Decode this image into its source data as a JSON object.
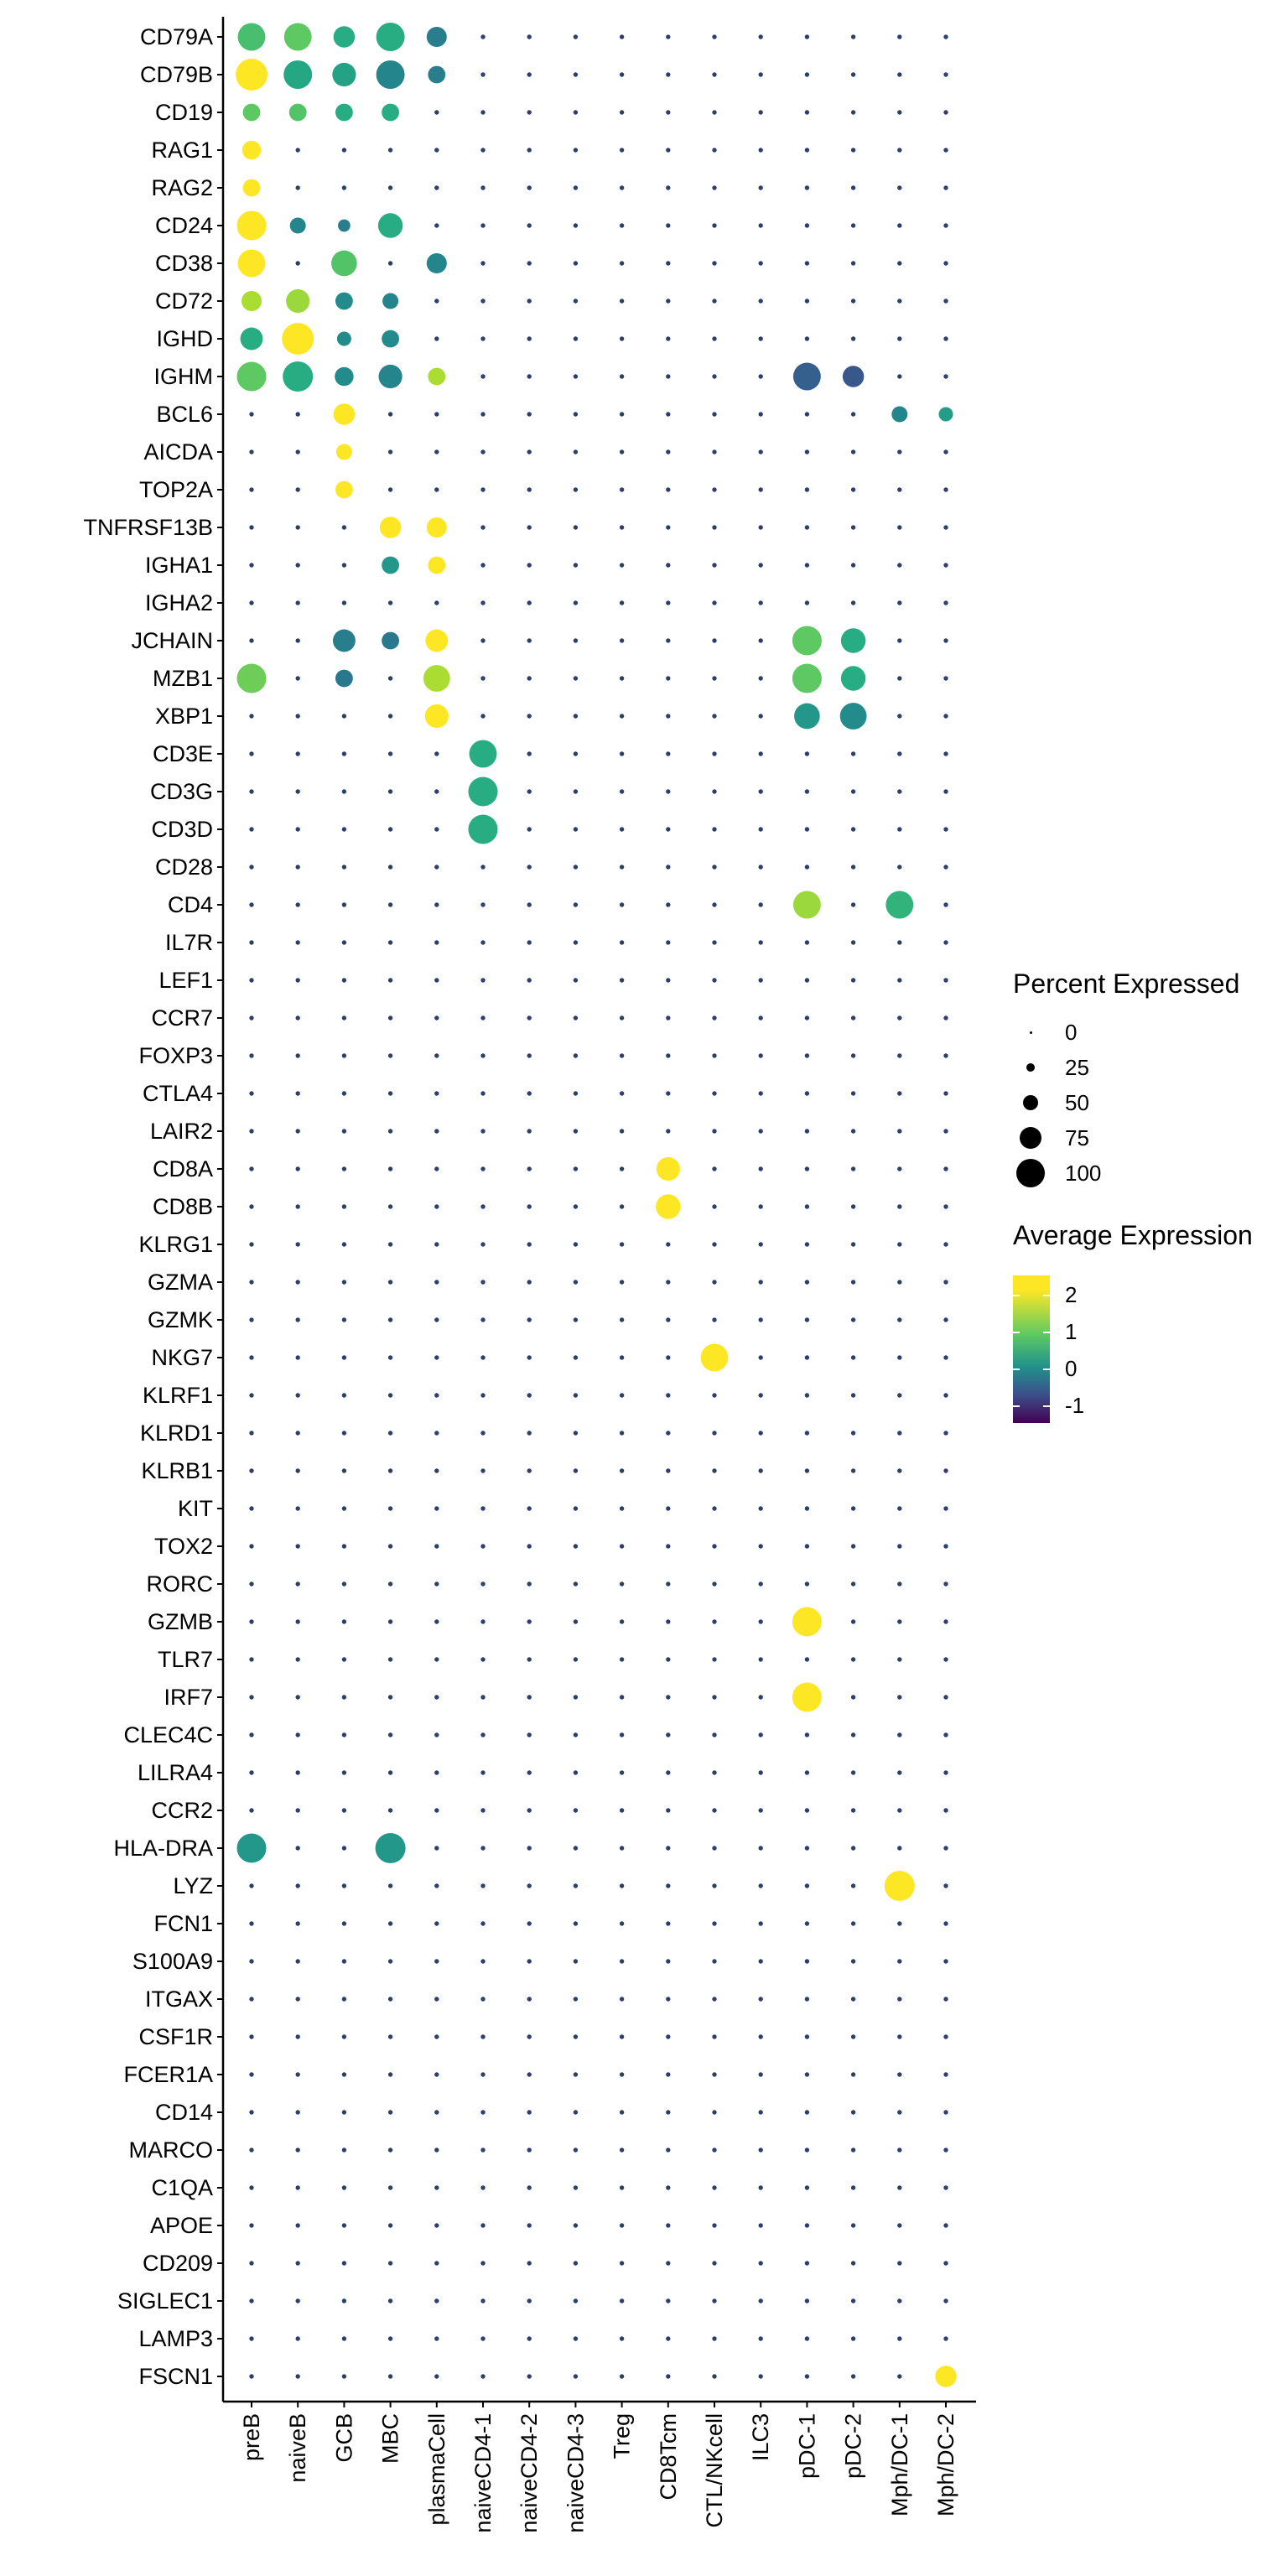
{
  "chart_data": {
    "type": "dotplot",
    "genes": [
      "CD79A",
      "CD79B",
      "CD19",
      "RAG1",
      "RAG2",
      "CD24",
      "CD38",
      "CD72",
      "IGHD",
      "IGHM",
      "BCL6",
      "AICDA",
      "TOP2A",
      "TNFRSF13B",
      "IGHA1",
      "IGHA2",
      "JCHAIN",
      "MZB1",
      "XBP1",
      "CD3E",
      "CD3G",
      "CD3D",
      "CD28",
      "CD4",
      "IL7R",
      "LEF1",
      "CCR7",
      "FOXP3",
      "CTLA4",
      "LAIR2",
      "CD8A",
      "CD8B",
      "KLRG1",
      "GZMA",
      "GZMK",
      "NKG7",
      "KLRF1",
      "KLRD1",
      "KLRB1",
      "KIT",
      "TOX2",
      "RORC",
      "GZMB",
      "TLR7",
      "IRF7",
      "CLEC4C",
      "LILRA4",
      "CCR2",
      "HLA-DRA",
      "LYZ",
      "FCN1",
      "S100A9",
      "ITGAX",
      "CSF1R",
      "FCER1A",
      "CD14",
      "MARCO",
      "C1QA",
      "APOE",
      "CD209",
      "SIGLEC1",
      "LAMP3",
      "FSCN1"
    ],
    "cell_types": [
      "preB",
      "naiveB",
      "GCB",
      "MBC",
      "plasmaCell",
      "naiveCD4-1",
      "naiveCD4-2",
      "naiveCD4-3",
      "Treg",
      "CD8Tcm",
      "CTL/NKcell",
      "ILC3",
      "pDC-1",
      "pDC-2",
      "Mph/DC-1",
      "Mph/DC-2"
    ],
    "highlights": [
      {
        "gene": "CD79A",
        "cell": "preB",
        "pct": 75,
        "avg": 1.3
      },
      {
        "gene": "CD79A",
        "cell": "naiveB",
        "pct": 75,
        "avg": 1.5
      },
      {
        "gene": "CD79A",
        "cell": "GCB",
        "pct": 45,
        "avg": 1.0
      },
      {
        "gene": "CD79A",
        "cell": "MBC",
        "pct": 80,
        "avg": 1.0
      },
      {
        "gene": "CD79A",
        "cell": "plasmaCell",
        "pct": 40,
        "avg": 0.2
      },
      {
        "gene": "CD79B",
        "cell": "preB",
        "pct": 100,
        "avg": 2.3
      },
      {
        "gene": "CD79B",
        "cell": "naiveB",
        "pct": 80,
        "avg": 0.9
      },
      {
        "gene": "CD79B",
        "cell": "GCB",
        "pct": 55,
        "avg": 0.8
      },
      {
        "gene": "CD79B",
        "cell": "MBC",
        "pct": 80,
        "avg": 0.3
      },
      {
        "gene": "CD79B",
        "cell": "plasmaCell",
        "pct": 30,
        "avg": 0.2
      },
      {
        "gene": "CD19",
        "cell": "preB",
        "pct": 30,
        "avg": 1.5
      },
      {
        "gene": "CD19",
        "cell": "naiveB",
        "pct": 30,
        "avg": 1.4
      },
      {
        "gene": "CD19",
        "cell": "GCB",
        "pct": 30,
        "avg": 1.0
      },
      {
        "gene": "CD19",
        "cell": "MBC",
        "pct": 30,
        "avg": 1.0
      },
      {
        "gene": "RAG1",
        "cell": "preB",
        "pct": 35,
        "avg": 2.3
      },
      {
        "gene": "RAG2",
        "cell": "preB",
        "pct": 30,
        "avg": 2.3
      },
      {
        "gene": "CD24",
        "cell": "preB",
        "pct": 85,
        "avg": 2.3
      },
      {
        "gene": "CD24",
        "cell": "naiveB",
        "pct": 25,
        "avg": 0.3
      },
      {
        "gene": "CD24",
        "cell": "GCB",
        "pct": 15,
        "avg": 0.2
      },
      {
        "gene": "CD24",
        "cell": "MBC",
        "pct": 60,
        "avg": 1.0
      },
      {
        "gene": "CD38",
        "cell": "preB",
        "pct": 75,
        "avg": 2.3
      },
      {
        "gene": "CD38",
        "cell": "GCB",
        "pct": 65,
        "avg": 1.4
      },
      {
        "gene": "CD38",
        "cell": "plasmaCell",
        "pct": 40,
        "avg": 0.3
      },
      {
        "gene": "CD72",
        "cell": "preB",
        "pct": 40,
        "avg": 2.0
      },
      {
        "gene": "CD72",
        "cell": "naiveB",
        "pct": 55,
        "avg": 1.9
      },
      {
        "gene": "CD72",
        "cell": "GCB",
        "pct": 30,
        "avg": 0.4
      },
      {
        "gene": "CD72",
        "cell": "MBC",
        "pct": 25,
        "avg": 0.3
      },
      {
        "gene": "IGHD",
        "cell": "preB",
        "pct": 50,
        "avg": 1.0
      },
      {
        "gene": "IGHD",
        "cell": "naiveB",
        "pct": 100,
        "avg": 2.3
      },
      {
        "gene": "IGHD",
        "cell": "GCB",
        "pct": 20,
        "avg": 0.4
      },
      {
        "gene": "IGHD",
        "cell": "MBC",
        "pct": 30,
        "avg": 0.4
      },
      {
        "gene": "IGHM",
        "cell": "preB",
        "pct": 85,
        "avg": 1.5
      },
      {
        "gene": "IGHM",
        "cell": "naiveB",
        "pct": 90,
        "avg": 1.0
      },
      {
        "gene": "IGHM",
        "cell": "GCB",
        "pct": 35,
        "avg": 0.4
      },
      {
        "gene": "IGHM",
        "cell": "MBC",
        "pct": 55,
        "avg": 0.3
      },
      {
        "gene": "IGHM",
        "cell": "plasmaCell",
        "pct": 30,
        "avg": 2.0
      },
      {
        "gene": "IGHM",
        "cell": "pDC-1",
        "pct": 75,
        "avg": -0.3
      },
      {
        "gene": "IGHM",
        "cell": "pDC-2",
        "pct": 45,
        "avg": -0.4
      },
      {
        "gene": "BCL6",
        "cell": "GCB",
        "pct": 45,
        "avg": 2.3
      },
      {
        "gene": "BCL6",
        "cell": "Mph/DC-1",
        "pct": 25,
        "avg": 0.3
      },
      {
        "gene": "BCL6",
        "cell": "Mph/DC-2",
        "pct": 20,
        "avg": 0.7
      },
      {
        "gene": "AICDA",
        "cell": "GCB",
        "pct": 25,
        "avg": 2.3
      },
      {
        "gene": "TOP2A",
        "cell": "GCB",
        "pct": 30,
        "avg": 2.3
      },
      {
        "gene": "TNFRSF13B",
        "cell": "MBC",
        "pct": 45,
        "avg": 2.3
      },
      {
        "gene": "TNFRSF13B",
        "cell": "plasmaCell",
        "pct": 40,
        "avg": 2.3
      },
      {
        "gene": "IGHA1",
        "cell": "MBC",
        "pct": 30,
        "avg": 0.6
      },
      {
        "gene": "IGHA1",
        "cell": "plasmaCell",
        "pct": 30,
        "avg": 2.3
      },
      {
        "gene": "JCHAIN",
        "cell": "GCB",
        "pct": 50,
        "avg": 0.2
      },
      {
        "gene": "JCHAIN",
        "cell": "MBC",
        "pct": 30,
        "avg": 0.1
      },
      {
        "gene": "JCHAIN",
        "cell": "plasmaCell",
        "pct": 50,
        "avg": 2.3
      },
      {
        "gene": "JCHAIN",
        "cell": "pDC-1",
        "pct": 85,
        "avg": 1.5
      },
      {
        "gene": "JCHAIN",
        "cell": "pDC-2",
        "pct": 60,
        "avg": 1.0
      },
      {
        "gene": "MZB1",
        "cell": "preB",
        "pct": 85,
        "avg": 1.6
      },
      {
        "gene": "MZB1",
        "cell": "GCB",
        "pct": 30,
        "avg": 0.1
      },
      {
        "gene": "MZB1",
        "cell": "plasmaCell",
        "pct": 70,
        "avg": 2.0
      },
      {
        "gene": "MZB1",
        "cell": "pDC-1",
        "pct": 85,
        "avg": 1.5
      },
      {
        "gene": "MZB1",
        "cell": "pDC-2",
        "pct": 60,
        "avg": 1.0
      },
      {
        "gene": "XBP1",
        "cell": "plasmaCell",
        "pct": 55,
        "avg": 2.3
      },
      {
        "gene": "XBP1",
        "cell": "pDC-1",
        "pct": 65,
        "avg": 0.6
      },
      {
        "gene": "XBP1",
        "cell": "pDC-2",
        "pct": 70,
        "avg": 0.4
      },
      {
        "gene": "CD3E",
        "cell": "naiveCD4-1",
        "pct": 75,
        "avg": 1.0
      },
      {
        "gene": "CD3G",
        "cell": "naiveCD4-1",
        "pct": 85,
        "avg": 1.0
      },
      {
        "gene": "CD3D",
        "cell": "naiveCD4-1",
        "pct": 85,
        "avg": 1.0
      },
      {
        "gene": "CD4",
        "cell": "pDC-1",
        "pct": 75,
        "avg": 1.9
      },
      {
        "gene": "CD4",
        "cell": "Mph/DC-1",
        "pct": 75,
        "avg": 1.1
      },
      {
        "gene": "CD8A",
        "cell": "CD8Tcm",
        "pct": 55,
        "avg": 2.3
      },
      {
        "gene": "CD8B",
        "cell": "CD8Tcm",
        "pct": 60,
        "avg": 2.3
      },
      {
        "gene": "NKG7",
        "cell": "CTL/NKcell",
        "pct": 75,
        "avg": 2.3
      },
      {
        "gene": "GZMB",
        "cell": "pDC-1",
        "pct": 85,
        "avg": 2.3
      },
      {
        "gene": "IRF7",
        "cell": "pDC-1",
        "pct": 85,
        "avg": 2.3
      },
      {
        "gene": "HLA-DRA",
        "cell": "preB",
        "pct": 85,
        "avg": 0.6
      },
      {
        "gene": "HLA-DRA",
        "cell": "MBC",
        "pct": 90,
        "avg": 0.6
      },
      {
        "gene": "LYZ",
        "cell": "Mph/DC-1",
        "pct": 90,
        "avg": 2.3
      },
      {
        "gene": "FSCN1",
        "cell": "Mph/DC-2",
        "pct": 45,
        "avg": 2.3
      }
    ],
    "size_legend": {
      "title": "Percent Expressed",
      "breaks": [
        0,
        25,
        50,
        75,
        100
      ]
    },
    "color_legend": {
      "title": "Average Expression",
      "breaks": [
        2,
        1,
        0,
        -1
      ],
      "range": [
        -1.4,
        2.5
      ]
    },
    "colors": {
      "high": "#fde725",
      "mid": "#21918c",
      "low": "#440154"
    }
  },
  "legend": {
    "size_title": "Percent Expressed",
    "size_labels": [
      "0",
      "25",
      "50",
      "75",
      "100"
    ],
    "color_title": "Average Expression",
    "color_labels": [
      "2",
      "1",
      "0",
      "-1"
    ]
  }
}
